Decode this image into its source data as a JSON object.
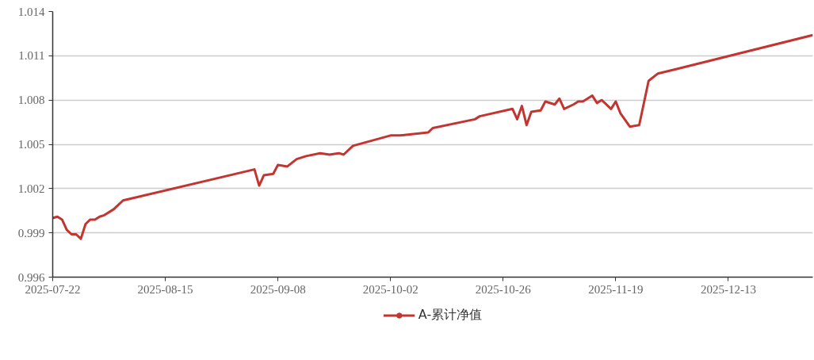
{
  "chart_data": {
    "type": "line",
    "x": [
      "2025-07-22",
      "2025-07-23",
      "2025-07-24",
      "2025-07-25",
      "2025-07-26",
      "2025-07-27",
      "2025-07-28",
      "2025-07-29",
      "2025-07-30",
      "2025-07-31",
      "2025-08-01",
      "2025-08-02",
      "2025-08-03",
      "2025-08-04",
      "2025-08-06",
      "2025-09-03",
      "2025-09-04",
      "2025-09-05",
      "2025-09-07",
      "2025-09-08",
      "2025-09-10",
      "2025-09-12",
      "2025-09-14",
      "2025-09-17",
      "2025-09-19",
      "2025-09-21",
      "2025-09-22",
      "2025-09-24",
      "2025-10-02",
      "2025-10-04",
      "2025-10-10",
      "2025-10-11",
      "2025-10-20",
      "2025-10-21",
      "2025-10-28",
      "2025-10-29",
      "2025-10-30",
      "2025-10-31",
      "2025-11-01",
      "2025-11-03",
      "2025-11-04",
      "2025-11-06",
      "2025-11-07",
      "2025-11-08",
      "2025-11-10",
      "2025-11-11",
      "2025-11-12",
      "2025-11-14",
      "2025-11-15",
      "2025-11-16",
      "2025-11-18",
      "2025-11-19",
      "2025-11-20",
      "2025-11-22",
      "2025-11-24",
      "2025-11-26",
      "2025-11-28",
      "2025-12-02",
      "2025-12-31"
    ],
    "series": [
      {
        "name": "A-累计净值",
        "color": "#c23531",
        "values": [
          1.0,
          1.0001,
          0.9999,
          0.9992,
          0.9989,
          0.9989,
          0.9986,
          0.9996,
          0.9999,
          0.9999,
          1.0001,
          1.0002,
          1.0004,
          1.0006,
          1.0012,
          1.0033,
          1.0022,
          1.0029,
          1.003,
          1.0036,
          1.0035,
          1.004,
          1.0042,
          1.0044,
          1.0043,
          1.0044,
          1.0043,
          1.0049,
          1.0056,
          1.0056,
          1.0058,
          1.0061,
          1.0067,
          1.0069,
          1.0074,
          1.0067,
          1.0076,
          1.0063,
          1.0072,
          1.0073,
          1.0079,
          1.0077,
          1.0081,
          1.0074,
          1.0077,
          1.0079,
          1.0079,
          1.0083,
          1.0078,
          1.008,
          1.0074,
          1.0079,
          1.0071,
          1.0062,
          1.0063,
          1.0093,
          1.0098,
          1.0101,
          1.0124
        ]
      }
    ],
    "xlim": [
      "2025-07-22",
      "2025-12-31"
    ],
    "xticks": [
      "2025-07-22",
      "2025-08-15",
      "2025-09-08",
      "2025-10-02",
      "2025-10-26",
      "2025-11-19",
      "2025-12-13"
    ],
    "ylim": [
      0.996,
      1.014
    ],
    "yticks": [
      0.996,
      0.999,
      1.002,
      1.005,
      1.008,
      1.011,
      1.014
    ],
    "grid": "y",
    "legend": "bottom",
    "line_style": "solid"
  }
}
